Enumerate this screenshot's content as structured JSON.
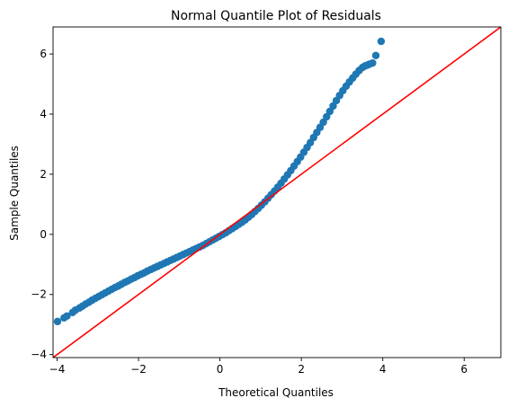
{
  "chart_data": {
    "type": "scatter",
    "title": "Normal Quantile Plot of Residuals",
    "xlabel": "Theoretical Quantiles",
    "ylabel": "Sample Quantiles",
    "xlim": [
      -4.1,
      6.9
    ],
    "ylim": [
      -4.1,
      6.9
    ],
    "xticks": [
      -4,
      -2,
      0,
      2,
      4,
      6
    ],
    "yticks": [
      -4,
      -2,
      0,
      2,
      4,
      6
    ],
    "xtick_labels": [
      "−4",
      "−2",
      "0",
      "2",
      "4",
      "6"
    ],
    "ytick_labels": [
      "−4",
      "−2",
      "0",
      "2",
      "4",
      "6"
    ],
    "grid": false,
    "legend": "none",
    "reference_line": {
      "x": [
        -4.1,
        6.9
      ],
      "y": [
        -4.1,
        6.9
      ],
      "color": "#ff0000"
    },
    "marker_color": "#1f77b4",
    "series": [
      {
        "x": [
          -3.99,
          -3.83,
          -3.76,
          -3.62,
          -3.55,
          -3.45,
          -3.38,
          -3.3,
          -3.22,
          -3.14,
          -3.06,
          -2.98,
          -2.9,
          -2.82,
          -2.74,
          -2.66,
          -2.58,
          -2.5,
          -2.42,
          -2.34,
          -2.26,
          -2.18,
          -2.1,
          -2.02,
          -1.94,
          -1.86,
          -1.78,
          -1.7,
          -1.62,
          -1.54,
          -1.46,
          -1.38,
          -1.3,
          -1.22,
          -1.14,
          -1.06,
          -0.98,
          -0.9,
          -0.82,
          -0.74,
          -0.66,
          -0.58,
          -0.5,
          -0.42,
          -0.34,
          -0.26,
          -0.18,
          -0.1,
          -0.02,
          0.06,
          0.14,
          0.22,
          0.3,
          0.38,
          0.46,
          0.54,
          0.62,
          0.7,
          0.78,
          0.86,
          0.94,
          1.02,
          1.1,
          1.18,
          1.26,
          1.34,
          1.42,
          1.5,
          1.58,
          1.66,
          1.74,
          1.82,
          1.9,
          1.98,
          2.06,
          2.14,
          2.22,
          2.3,
          2.38,
          2.46,
          2.54,
          2.62,
          2.7,
          2.78,
          2.86,
          2.94,
          3.02,
          3.1,
          3.18,
          3.26,
          3.34,
          3.42,
          3.5,
          3.56,
          3.62,
          3.67,
          3.75,
          3.83,
          3.96
        ],
        "y": [
          -2.9,
          -2.78,
          -2.72,
          -2.6,
          -2.52,
          -2.45,
          -2.39,
          -2.32,
          -2.26,
          -2.19,
          -2.13,
          -2.07,
          -2.01,
          -1.95,
          -1.89,
          -1.83,
          -1.77,
          -1.72,
          -1.66,
          -1.6,
          -1.55,
          -1.49,
          -1.44,
          -1.38,
          -1.33,
          -1.28,
          -1.22,
          -1.17,
          -1.12,
          -1.07,
          -1.02,
          -0.97,
          -0.92,
          -0.87,
          -0.82,
          -0.77,
          -0.72,
          -0.67,
          -0.62,
          -0.57,
          -0.52,
          -0.47,
          -0.42,
          -0.37,
          -0.31,
          -0.25,
          -0.19,
          -0.13,
          -0.07,
          -0.01,
          0.05,
          0.12,
          0.19,
          0.26,
          0.33,
          0.4,
          0.48,
          0.57,
          0.66,
          0.76,
          0.86,
          0.97,
          1.08,
          1.2,
          1.32,
          1.44,
          1.57,
          1.7,
          1.84,
          1.98,
          2.12,
          2.27,
          2.42,
          2.57,
          2.73,
          2.89,
          3.05,
          3.22,
          3.39,
          3.56,
          3.73,
          3.91,
          4.09,
          4.27,
          4.45,
          4.62,
          4.78,
          4.93,
          5.07,
          5.2,
          5.33,
          5.45,
          5.55,
          5.6,
          5.63,
          5.66,
          5.7,
          5.95,
          6.42
        ]
      }
    ]
  }
}
